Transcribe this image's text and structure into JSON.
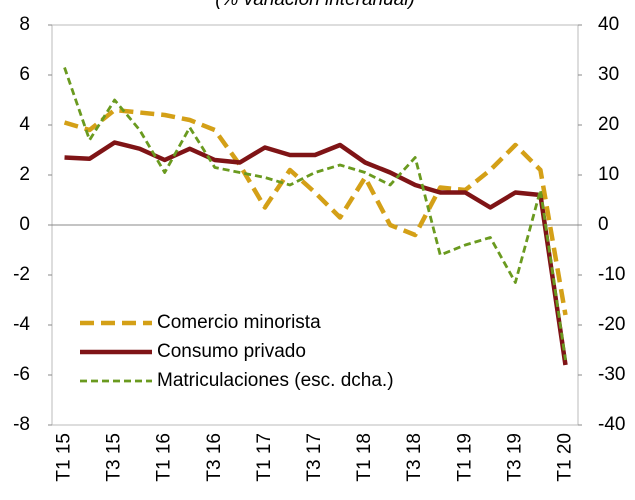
{
  "chart_data": {
    "type": "line",
    "title": "(% variación interanual)",
    "categories": [
      "T1 15",
      null,
      "T3 15",
      null,
      "T1 16",
      null,
      "T3 16",
      null,
      "T1 17",
      null,
      "T3 17",
      null,
      "T1 18",
      null,
      "T3 18",
      null,
      "T1 19",
      null,
      "T3 19",
      null,
      "T1 20"
    ],
    "series": [
      {
        "name": "Comercio minorista",
        "color": "#D4A017",
        "values": [
          4.1,
          3.8,
          4.6,
          4.5,
          4.4,
          4.2,
          3.8,
          2.4,
          0.7,
          2.2,
          1.3,
          0.3,
          1.9,
          0.0,
          -0.4,
          1.5,
          1.4,
          2.2,
          3.2,
          2.2,
          -3.6
        ]
      },
      {
        "name": "Consumo privado",
        "color": "#7F1416",
        "values": [
          2.7,
          2.65,
          3.3,
          3.05,
          2.6,
          3.05,
          2.6,
          2.5,
          3.1,
          2.8,
          2.8,
          3.2,
          2.5,
          2.1,
          1.6,
          1.3,
          1.3,
          0.7,
          1.3,
          1.2,
          -5.6
        ]
      },
      {
        "name": "Matriculaciones (esc. dcha.)",
        "color": "#6A9A1F",
        "axis": "y2",
        "values": [
          31.5,
          17,
          25,
          19,
          10.5,
          19.5,
          11.5,
          10.5,
          9.5,
          8,
          10.5,
          12,
          10.5,
          8,
          13.5,
          -6,
          -4,
          -2.5,
          -11.5,
          7,
          -27
        ]
      }
    ],
    "ylim": [
      -8,
      8
    ],
    "yticks": [
      -8,
      -6,
      -4,
      -2,
      0,
      2,
      4,
      6,
      8
    ],
    "y2lim": [
      -40,
      40
    ],
    "y2ticks": [
      -40,
      -30,
      -20,
      -10,
      0,
      10,
      20,
      30,
      40
    ],
    "legend": "lower left"
  }
}
